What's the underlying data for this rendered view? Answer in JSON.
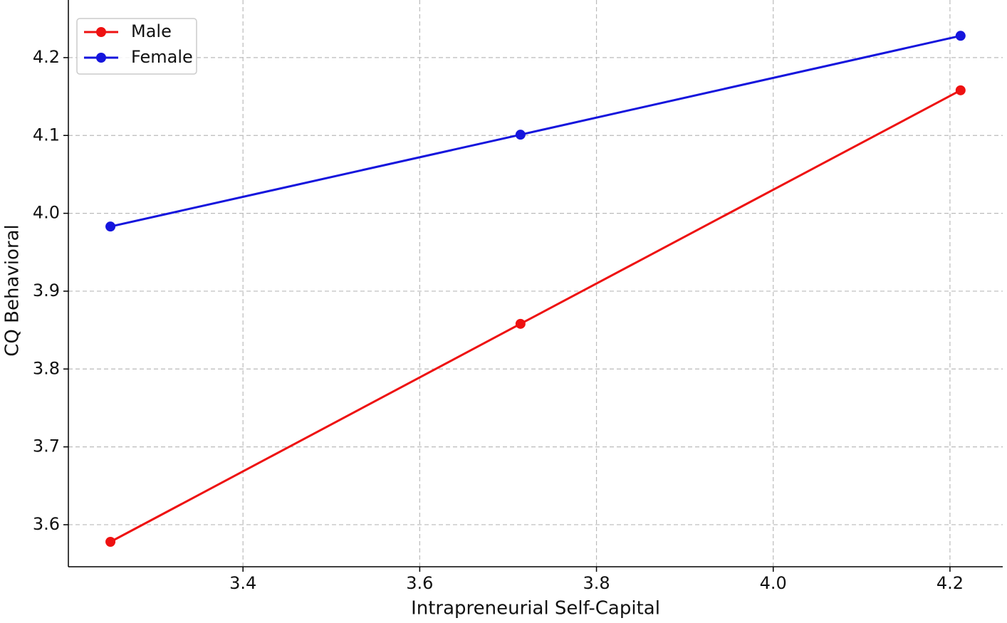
{
  "chart_data": {
    "type": "line",
    "xlabel": "Intrapreneurial Self-Capital",
    "ylabel": "CQ Behavioral",
    "x": [
      3.25,
      3.714,
      4.212
    ],
    "series": [
      {
        "name": "Male",
        "color": "#ee1111",
        "values": [
          3.578,
          3.858,
          4.158
        ]
      },
      {
        "name": "Female",
        "color": "#1515dd",
        "values": [
          3.983,
          4.101,
          4.228
        ]
      }
    ],
    "xlim": [
      3.2024,
      4.2597
    ],
    "ylim": [
      3.546,
      4.274
    ],
    "xticks": [
      3.4,
      3.6,
      3.8,
      {
        "value": 4.0,
        "label": "4.0"
      },
      4.2
    ],
    "yticks": [
      3.6,
      3.7,
      3.8,
      3.9,
      {
        "value": 4.0,
        "label": "4.0"
      },
      4.1,
      4.2
    ],
    "grid": true,
    "legend": "upper left"
  }
}
